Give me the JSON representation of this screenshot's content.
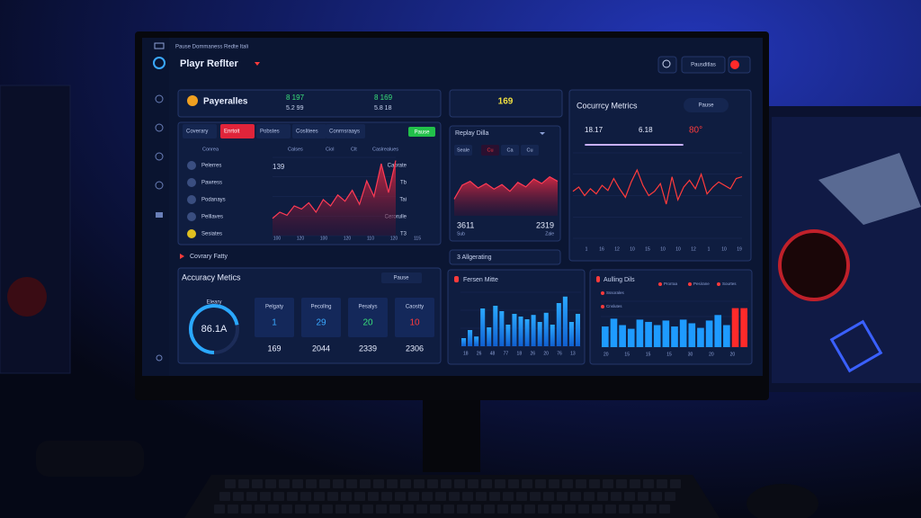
{
  "header": {
    "caption": "Pause Dommaness Redte Itali",
    "title": "Playr Reflter",
    "button": "Pausditlas"
  },
  "players": {
    "title": "Payeralles",
    "stats": [
      {
        "top": "8 197",
        "bottom": "5.2 99"
      },
      {
        "top": "8 169",
        "bottom": "5.8 18"
      }
    ]
  },
  "table": {
    "tabs": [
      "Coverary",
      "Enrtoit",
      "Pobstes",
      "Coslitees",
      "Conrnsraays"
    ],
    "action": "Pause",
    "columns": [
      "Conrea",
      "Calses",
      "Ciol",
      "Clt",
      "Caslrealues"
    ],
    "rows": [
      {
        "name": "Pelerres",
        "value": "139",
        "side": "Caorate"
      },
      {
        "name": "Pawress",
        "value": "",
        "side": "Tb"
      },
      {
        "name": "Podanays",
        "value": "",
        "side": "Tai"
      },
      {
        "name": "Pelllaves",
        "value": "",
        "side": "Cerorulle"
      },
      {
        "name": "Sesiates",
        "value": "",
        "side": "T3"
      }
    ],
    "x_labels": [
      "100",
      "120",
      "100",
      "120",
      "110",
      "120",
      "115"
    ],
    "values": [
      22,
      30,
      26,
      38,
      34,
      42,
      30,
      46,
      38,
      52,
      44,
      58,
      40,
      70,
      50,
      92,
      55,
      96
    ]
  },
  "trend_title": "Covrary Fatty",
  "accuracy": {
    "title": "Accuracy Metics",
    "button": "Pause",
    "gauge_label": "Eleary",
    "gauge_value": "86.1A",
    "gauge_percent": 72,
    "columns": [
      {
        "name": "Pelgaty",
        "value": "1",
        "total": "169",
        "color": "#3aa8ff"
      },
      {
        "name": "Pecollng",
        "value": "29",
        "total": "2044",
        "color": "#3aa8ff"
      },
      {
        "name": "Pesalys",
        "value": "20",
        "total": "2339",
        "color": "#39e07a"
      },
      {
        "name": "Caostty",
        "value": "10",
        "total": "2306",
        "color": "#ff3b3b"
      }
    ]
  },
  "highlight": "169",
  "replay": {
    "title": "Replay Dilla",
    "tabs": [
      "Seale",
      "Cu",
      "Ca",
      "Cu"
    ],
    "values": [
      30,
      55,
      62,
      50,
      58,
      48,
      56,
      44,
      60,
      52,
      66,
      58,
      70,
      62
    ],
    "left": "3611",
    "left_sub": "Sub",
    "right": "2319",
    "right_sub": "Zale"
  },
  "aggregating": "3 Allgerating",
  "metrics": {
    "title": "Cocurrcy Metrics",
    "button": "Pause",
    "stats": [
      "18.17",
      "6.18",
      "80°"
    ],
    "values": [
      55,
      60,
      50,
      58,
      52,
      62,
      56,
      70,
      58,
      48,
      66,
      80,
      62,
      50,
      55,
      64,
      40,
      72,
      45,
      60,
      68,
      58,
      75,
      52,
      60,
      66,
      62,
      58,
      70,
      72
    ],
    "x_labels": [
      "1",
      "16",
      "12",
      "10",
      "15",
      "10",
      "10",
      "12",
      "1",
      "10",
      "19"
    ]
  },
  "bars1": {
    "title": "Fersen Mitte",
    "values": [
      15,
      30,
      18,
      70,
      35,
      75,
      65,
      40,
      60,
      55,
      50,
      58,
      45,
      62,
      40,
      80,
      92,
      45,
      60
    ],
    "x_labels": [
      "18",
      "26",
      "48",
      "77",
      "18",
      "26",
      "20",
      "76",
      "13"
    ]
  },
  "bars2": {
    "title": "Aulling Dils",
    "legend": [
      "Prorraa",
      "Pesirane",
      "Sourtes",
      "Sssorales",
      "Cnslutes"
    ],
    "values": [
      45,
      62,
      48,
      40,
      60,
      55,
      48,
      58,
      45,
      60,
      52,
      42,
      58,
      70,
      48,
      85,
      85
    ],
    "colors": [
      "#1e9bff",
      "#1e9bff",
      "#1e9bff",
      "#1e9bff",
      "#1e9bff",
      "#1e9bff",
      "#1e9bff",
      "#1e9bff",
      "#1e9bff",
      "#1e9bff",
      "#1e9bff",
      "#1e9bff",
      "#1e9bff",
      "#1e9bff",
      "#1e9bff",
      "#ff2a2a",
      "#ff2a2a"
    ],
    "x_labels": [
      "20",
      "15",
      "15",
      "15",
      "30",
      "20",
      "20"
    ]
  }
}
